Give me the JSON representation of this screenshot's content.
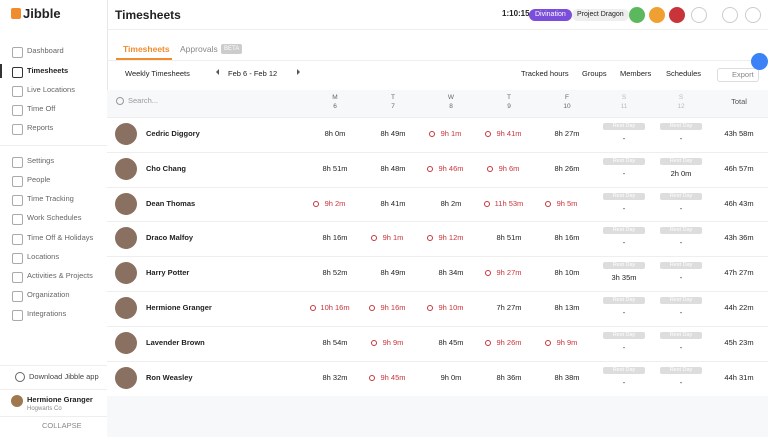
{
  "brand": "Jibble",
  "header": {
    "title": "Timesheets",
    "timer": "1:10:15",
    "activity": "Divination",
    "project": "Project Dragon"
  },
  "sidebar": {
    "items": [
      "Dashboard",
      "Timesheets",
      "Live Locations",
      "Time Off",
      "Reports",
      "Settings",
      "People",
      "Time Tracking",
      "Work Schedules",
      "Time Off & Holidays",
      "Locations",
      "Activities & Projects",
      "Organization",
      "Integrations"
    ],
    "download": "Download Jibble app",
    "user": {
      "name": "Hermione Granger",
      "org": "Hogwarts Co"
    },
    "collapse": "COLLAPSE"
  },
  "tabs": [
    {
      "label": "Timesheets"
    },
    {
      "label": "Approvals",
      "badge": "BETA"
    }
  ],
  "toolbar": {
    "view": "Weekly Timesheets",
    "range": "Feb 6 - Feb 12",
    "filters": [
      "Tracked hours",
      "Groups",
      "Members",
      "Schedules"
    ],
    "export": "Export"
  },
  "table": {
    "search": "Search...",
    "total": "Total",
    "days": [
      {
        "letter": "M",
        "date": "6"
      },
      {
        "letter": "T",
        "date": "7"
      },
      {
        "letter": "W",
        "date": "8"
      },
      {
        "letter": "T",
        "date": "9"
      },
      {
        "letter": "F",
        "date": "10"
      },
      {
        "letter": "S",
        "date": "11"
      },
      {
        "letter": "S",
        "date": "12"
      }
    ],
    "rows": [
      {
        "name": "Cedric Diggory",
        "cells": [
          {
            "text": "8h 0m"
          },
          {
            "text": "8h 49m"
          },
          {
            "text": "9h 1m",
            "color": "#c9343b"
          },
          {
            "text": "9h 41m",
            "color": "#c9343b"
          },
          {
            "text": "8h 27m"
          },
          {
            "badge": "Rest Day",
            "text": "-"
          },
          {
            "badge": "Rest Day",
            "text": "-"
          }
        ],
        "total": "43h 58m"
      },
      {
        "name": "Cho Chang",
        "cells": [
          {
            "text": "8h 51m"
          },
          {
            "text": "8h 48m"
          },
          {
            "text": "9h 46m",
            "color": "#c9343b"
          },
          {
            "text": "9h 6m",
            "color": "#c9343b"
          },
          {
            "text": "8h 26m"
          },
          {
            "badge": "Rest Day",
            "text": "-"
          },
          {
            "badge": "Rest Day",
            "text": "2h 0m"
          }
        ],
        "total": "46h 57m"
      },
      {
        "name": "Dean Thomas",
        "cells": [
          {
            "text": "9h 2m",
            "color": "#c9343b"
          },
          {
            "text": "8h 41m"
          },
          {
            "text": "8h 2m"
          },
          {
            "text": "11h 53m",
            "color": "#c9343b"
          },
          {
            "text": "9h 5m",
            "color": "#c9343b"
          },
          {
            "badge": "Rest Day",
            "text": "-"
          },
          {
            "badge": "Rest Day",
            "text": "-"
          }
        ],
        "total": "46h 43m"
      },
      {
        "name": "Draco Malfoy",
        "cells": [
          {
            "text": "8h 16m"
          },
          {
            "text": "9h 1m",
            "color": "#c9343b"
          },
          {
            "text": "9h 12m",
            "color": "#c9343b"
          },
          {
            "text": "8h 51m"
          },
          {
            "text": "8h 16m"
          },
          {
            "badge": "Rest Day",
            "text": "-"
          },
          {
            "badge": "Rest Day",
            "text": "-"
          }
        ],
        "total": "43h 36m"
      },
      {
        "name": "Harry Potter",
        "cells": [
          {
            "text": "8h 52m"
          },
          {
            "text": "8h 49m"
          },
          {
            "text": "8h 34m"
          },
          {
            "text": "9h 27m",
            "color": "#c9343b"
          },
          {
            "text": "8h 10m"
          },
          {
            "badge": "Rest Day",
            "text": "3h 35m"
          },
          {
            "badge": "Rest Day",
            "text": "-"
          }
        ],
        "total": "47h 27m"
      },
      {
        "name": "Hermione Granger",
        "cells": [
          {
            "text": "10h 16m",
            "color": "#c9343b"
          },
          {
            "text": "9h 16m",
            "color": "#c9343b"
          },
          {
            "text": "9h 10m",
            "color": "#c9343b"
          },
          {
            "text": "7h 27m"
          },
          {
            "text": "8h 13m"
          },
          {
            "badge": "Rest Day",
            "text": "-"
          },
          {
            "badge": "Rest Day",
            "text": "-"
          }
        ],
        "total": "44h 22m"
      },
      {
        "name": "Lavender Brown",
        "cells": [
          {
            "text": "8h 54m"
          },
          {
            "text": "9h 9m",
            "color": "#c9343b"
          },
          {
            "text": "8h 45m"
          },
          {
            "text": "9h 26m",
            "color": "#c9343b"
          },
          {
            "text": "9h 9m",
            "color": "#c9343b"
          },
          {
            "badge": "Rest Day",
            "text": "-"
          },
          {
            "badge": "Rest Day",
            "text": "-"
          }
        ],
        "total": "45h 23m"
      },
      {
        "name": "Ron Weasley",
        "cells": [
          {
            "text": "8h 32m"
          },
          {
            "text": "9h 45m",
            "color": "#c9343b"
          },
          {
            "text": "9h 0m"
          },
          {
            "text": "8h 36m"
          },
          {
            "text": "8h 38m"
          },
          {
            "badge": "Rest Day",
            "text": "-"
          },
          {
            "badge": "Rest Day",
            "text": "-"
          }
        ],
        "total": "44h 31m"
      }
    ]
  }
}
